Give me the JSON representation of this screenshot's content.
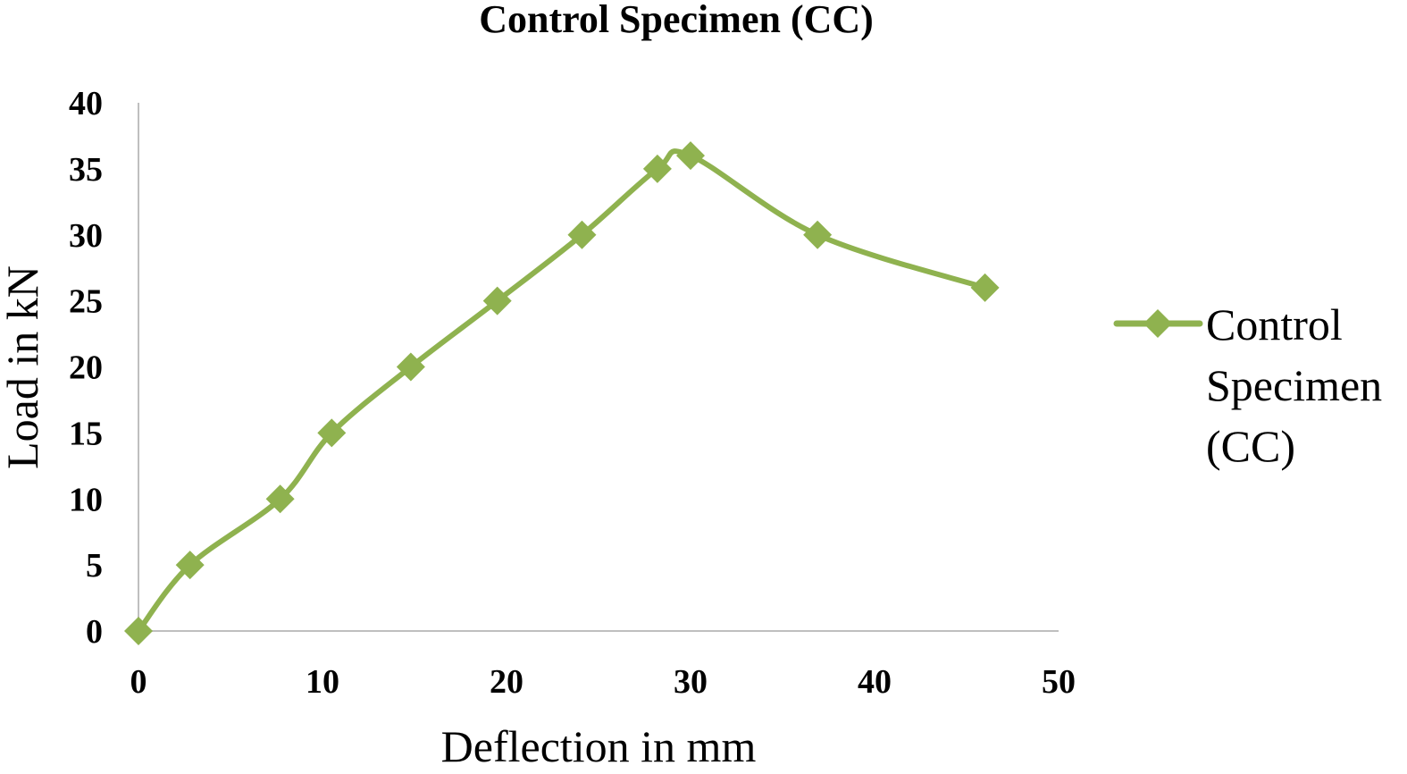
{
  "chart_data": {
    "type": "line",
    "title": "Control Specimen (CC)",
    "xlabel": "Deflection in mm",
    "ylabel": "Load in kN",
    "xlim": [
      0,
      50
    ],
    "ylim": [
      0,
      40
    ],
    "x_ticks": [
      0,
      10,
      20,
      30,
      40,
      50
    ],
    "y_ticks": [
      0,
      5,
      10,
      15,
      20,
      25,
      30,
      35,
      40
    ],
    "grid": false,
    "legend_position": "right",
    "legend_lines": [
      "Control",
      "Specimen",
      "(CC)"
    ],
    "series": [
      {
        "name": "Control Specimen (CC)",
        "color": "#8fb24f",
        "marker": "diamond",
        "smooth": true,
        "x": [
          0,
          2.8,
          7.7,
          10.5,
          14.8,
          19.5,
          24.1,
          28.2,
          30.0,
          36.9,
          46.0
        ],
        "y": [
          0,
          5,
          10,
          15,
          20,
          25,
          30,
          35,
          36,
          30,
          26
        ]
      }
    ]
  }
}
